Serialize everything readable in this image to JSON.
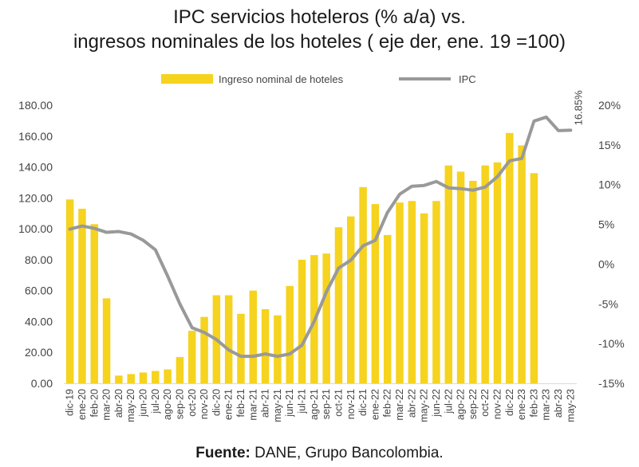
{
  "title_line1": "IPC servicios hoteleros (% a/a) vs.",
  "title_line2": "ingresos nominales de los hoteles ( eje der, ene. 19 =100)",
  "source_label": "Fuente:",
  "source_text": " DANE, Grupo Bancolombia.",
  "colors": {
    "bar": "#f5d31f",
    "line": "#999999",
    "text": "#444444"
  },
  "chart_data": {
    "type": "bar+line",
    "categories": [
      "dic-19",
      "ene-20",
      "feb-20",
      "mar-20",
      "abr-20",
      "may-20",
      "jun-20",
      "jul-20",
      "ago-20",
      "sep-20",
      "oct-20",
      "nov-20",
      "dic-20",
      "ene-21",
      "feb-21",
      "mar-21",
      "abr-21",
      "may-21",
      "jun-21",
      "jul-21",
      "ago-21",
      "sep-21",
      "oct-21",
      "nov-21",
      "dic-21",
      "ene-22",
      "feb-22",
      "mar-22",
      "abr-22",
      "may-22",
      "jun-22",
      "jul-22",
      "ago-22",
      "sep-22",
      "oct-22",
      "nov-22",
      "dic-22",
      "ene-23",
      "feb-23",
      "mar-23",
      "abr-23",
      "may-23"
    ],
    "tick_labels": [
      "dic-19",
      "ene-20",
      "feb-20",
      "mar-20",
      "abr-20",
      "may-20",
      "jun-20",
      "jul-20",
      "ago-20",
      "sep-20",
      "oct-20",
      "nov-20",
      "dic-20",
      "ene-21",
      "feb-21",
      "mar-21",
      "abr-21",
      "may-21",
      "jun-21",
      "jul-21",
      "ago-21",
      "sep-21",
      "oct-21",
      "nov-21",
      "dic-21",
      "ene-22",
      "feb-22",
      "mar-22",
      "abr-22",
      "may-22",
      "jun-22",
      "jul-22",
      "ago-22",
      "sep-22",
      "oct-22",
      "nov-22",
      "dic-22",
      "ene-23",
      "feb-23",
      "mar-23",
      "abr-23",
      "may-23"
    ],
    "series": [
      {
        "name": "Ingreso nominal de hoteles",
        "kind": "bar",
        "axis": "left",
        "values": [
          119,
          113,
          103,
          55,
          5,
          6,
          7,
          8,
          9,
          17,
          34,
          43,
          57,
          57,
          45,
          60,
          48,
          44,
          63,
          80,
          83,
          84,
          101,
          108,
          127,
          116,
          96,
          117,
          118,
          110,
          118,
          141,
          137,
          131,
          141,
          143,
          162,
          154,
          136,
          null,
          null,
          null
        ]
      },
      {
        "name": "IPC",
        "kind": "line",
        "axis": "right",
        "values": [
          4.4,
          4.8,
          4.5,
          4.0,
          4.1,
          3.8,
          3.0,
          1.8,
          -1.5,
          -5.0,
          -8.0,
          -8.6,
          -9.5,
          -10.8,
          -11.6,
          -11.6,
          -11.3,
          -11.6,
          -11.3,
          -10.2,
          -7.2,
          -3.5,
          -0.5,
          0.5,
          2.3,
          3.0,
          6.5,
          8.8,
          9.8,
          9.9,
          10.4,
          9.6,
          9.5,
          9.3,
          9.7,
          11.0,
          13.0,
          13.3,
          18.0,
          18.5,
          16.8,
          16.85
        ]
      }
    ],
    "y_left": {
      "min": 0,
      "max": 180,
      "ticks": [
        "0.00",
        "20.00",
        "40.00",
        "60.00",
        "80.00",
        "100.00",
        "120.00",
        "140.00",
        "160.00",
        "180.00"
      ]
    },
    "y_right": {
      "min": -15,
      "max": 20,
      "ticks": [
        "-15%",
        "-10%",
        "-5%",
        "0%",
        "5%",
        "10%",
        "15%",
        "20%"
      ]
    },
    "annotation": "16.85%",
    "legend_position": "top",
    "grid": false
  }
}
